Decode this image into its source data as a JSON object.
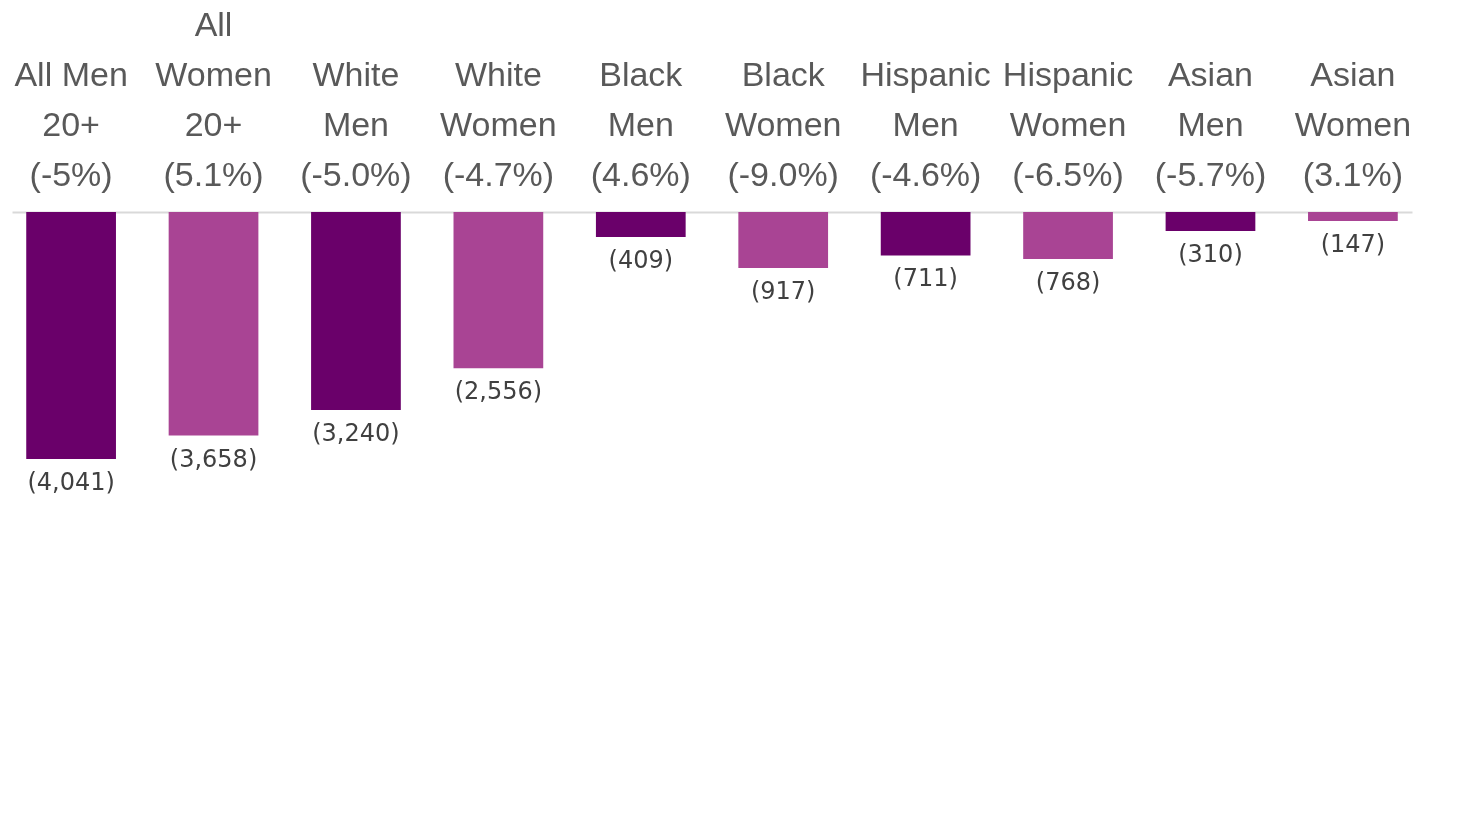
{
  "chart_data": {
    "type": "bar",
    "categories": [
      "All Men 20+ (-5%)",
      "All Women 20+ (5.1%)",
      "White Men (-5.0%)",
      "White Women (-4.7%)",
      "Black Men (4.6%)",
      "Black Women (-9.0%)",
      "Hispanic Men (-4.6%)",
      "Hispanic Women (-6.5%)",
      "Asian Men (-5.7%)",
      "Asian Women (3.1%)"
    ],
    "values": [
      -4041,
      -3658,
      -3240,
      -2556,
      -409,
      -917,
      -711,
      -768,
      -310,
      -147
    ],
    "value_labels": [
      "(4,041)",
      "(3,658)",
      "(3,240)",
      "(2,556)",
      "(409)",
      "(917)",
      "(711)",
      "(768)",
      "(310)",
      "(147)"
    ],
    "colors": [
      "#6a006a",
      "#a94494",
      "#6a006a",
      "#a94494",
      "#6a006a",
      "#a94494",
      "#6a006a",
      "#a94494",
      "#6a006a",
      "#a94494"
    ]
  }
}
